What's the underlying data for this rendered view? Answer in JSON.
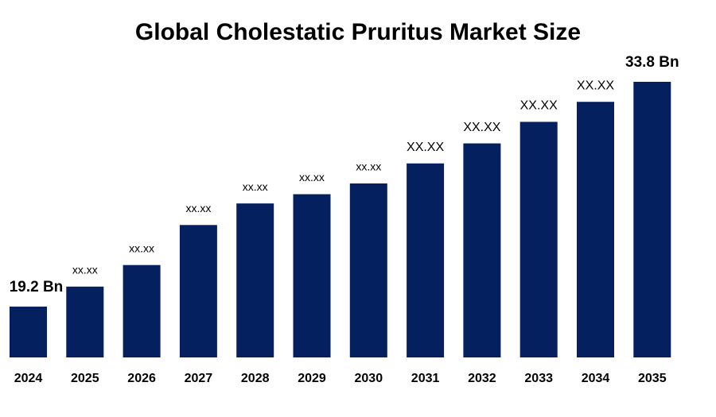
{
  "chart_data": {
    "type": "bar",
    "title": "Global Cholestatic Pruritus Market Size",
    "categories": [
      "2024",
      "2025",
      "2026",
      "2027",
      "2028",
      "2029",
      "2030",
      "2031",
      "2032",
      "2033",
      "2034",
      "2035"
    ],
    "values": [
      19.2,
      20.5,
      21.9,
      24.5,
      25.9,
      26.5,
      27.2,
      28.5,
      29.8,
      31.2,
      32.5,
      33.8
    ],
    "value_labels": [
      "19.2 Bn",
      "xx.xx",
      "xx.xx",
      "xx.xx",
      "xx.xx",
      "xx.xx",
      "xx.xx",
      "XX.XX",
      "XX.XX",
      "XX.XX",
      "XX.XX",
      "33.8 Bn"
    ],
    "color": "#04205f",
    "ylim": [
      15.9,
      33.8
    ]
  }
}
